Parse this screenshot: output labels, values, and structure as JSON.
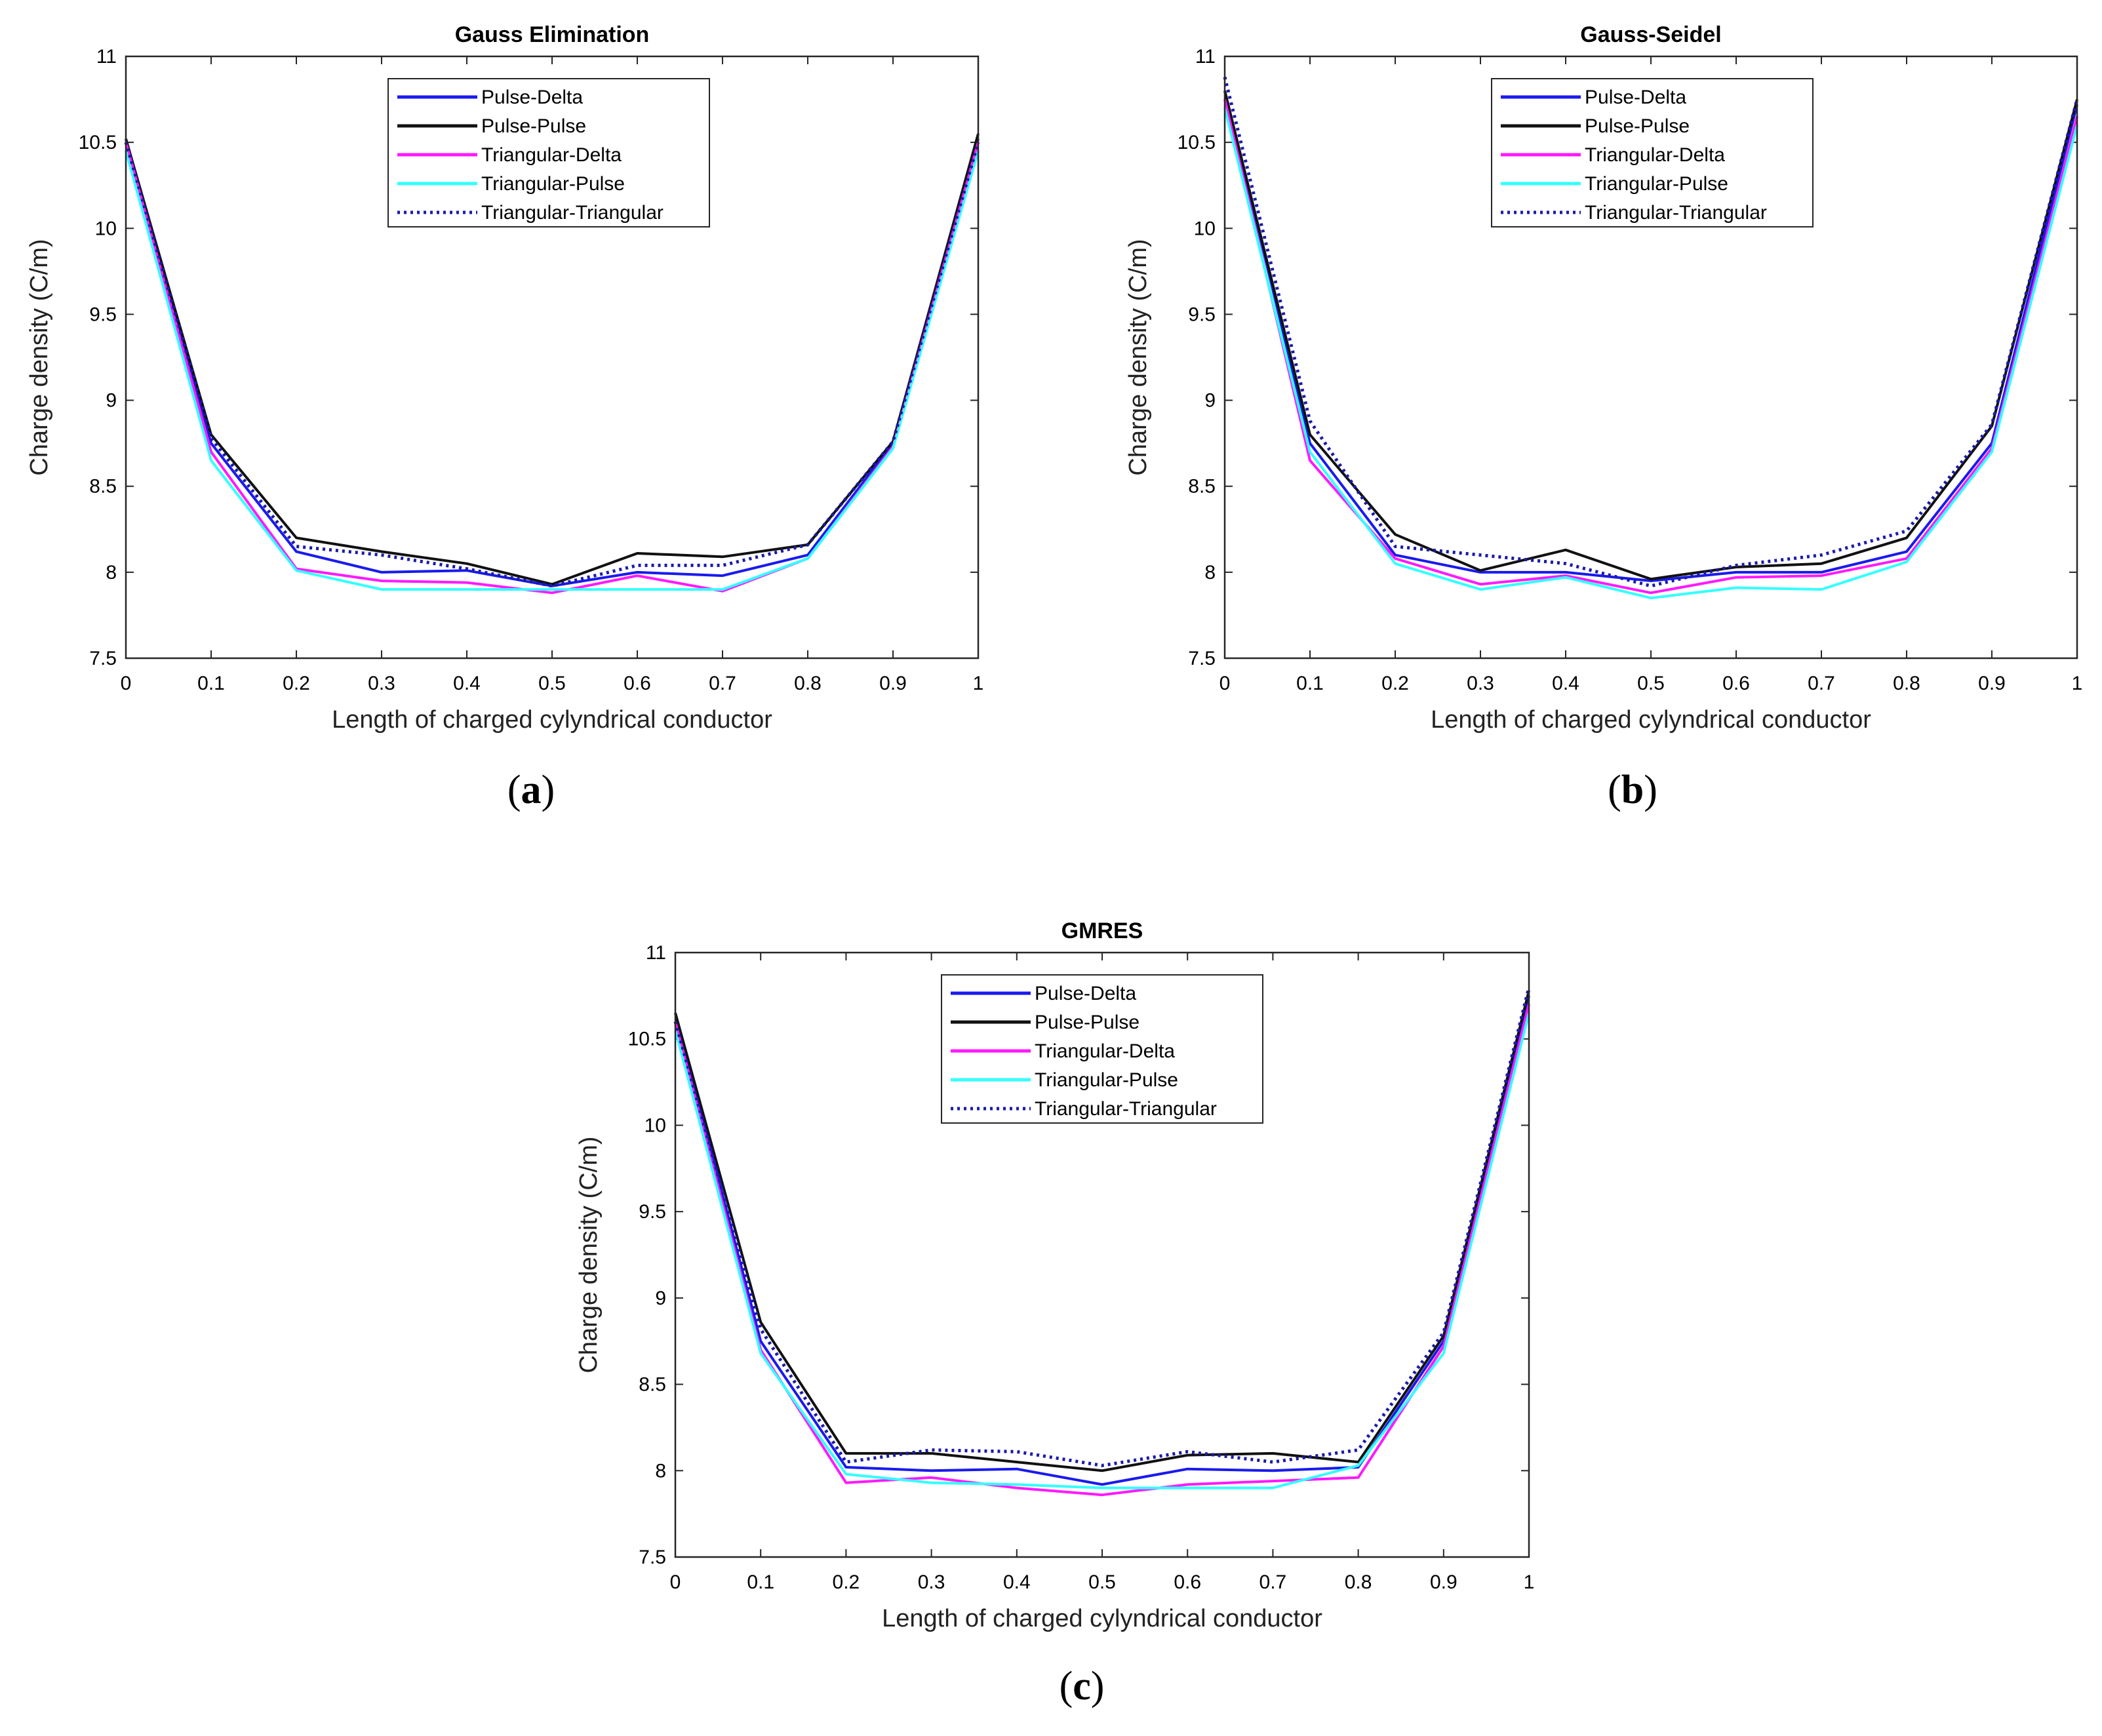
{
  "chart_data": [
    {
      "type": "line",
      "title": "Gauss Elimination",
      "caption_letter": "a",
      "xlabel": "Length of charged cylyndrical conductor",
      "ylabel": "Charge density (C/m)",
      "xlim": [
        0,
        1
      ],
      "ylim": [
        7.5,
        11
      ],
      "xticks": [
        "0",
        "0.1",
        "0.2",
        "0.3",
        "0.4",
        "0.5",
        "0.6",
        "0.7",
        "0.8",
        "0.9",
        "1"
      ],
      "yticks": [
        "7.5",
        "8",
        "8.5",
        "9",
        "9.5",
        "10",
        "10.5",
        "11"
      ],
      "legend_position": "top-center",
      "x": [
        0,
        0.1,
        0.2,
        0.3,
        0.4,
        0.5,
        0.6,
        0.7,
        0.8,
        0.9,
        1
      ],
      "series": [
        {
          "name": "Pulse-Delta",
          "color": "#1a1aee",
          "style": "solid",
          "values": [
            10.52,
            8.75,
            8.12,
            8.0,
            8.01,
            7.92,
            8.0,
            7.98,
            8.1,
            8.75,
            10.52
          ]
        },
        {
          "name": "Pulse-Pulse",
          "color": "#111111",
          "style": "solid",
          "values": [
            10.52,
            8.8,
            8.2,
            8.12,
            8.05,
            7.93,
            8.11,
            8.09,
            8.16,
            8.76,
            10.55
          ]
        },
        {
          "name": "Triangular-Delta",
          "color": "#ff19ff",
          "style": "solid",
          "values": [
            10.5,
            8.7,
            8.02,
            7.95,
            7.94,
            7.88,
            7.98,
            7.89,
            8.08,
            8.73,
            10.5
          ]
        },
        {
          "name": "Triangular-Pulse",
          "color": "#33ffff",
          "style": "solid",
          "values": [
            10.45,
            8.65,
            8.01,
            7.9,
            7.9,
            7.9,
            7.9,
            7.9,
            8.08,
            8.72,
            10.45
          ]
        },
        {
          "name": "Triangular-Triangular",
          "color": "#1a1aaa",
          "style": "dotted",
          "values": [
            10.5,
            8.78,
            8.15,
            8.1,
            8.02,
            7.92,
            8.04,
            8.04,
            8.16,
            8.76,
            10.5
          ]
        }
      ]
    },
    {
      "type": "line",
      "title": "Gauss-Seidel",
      "caption_letter": "b",
      "xlabel": "Length of charged cylyndrical conductor",
      "ylabel": "Charge density (C/m)",
      "xlim": [
        0,
        1
      ],
      "ylim": [
        7.5,
        11
      ],
      "xticks": [
        "0",
        "0.1",
        "0.2",
        "0.3",
        "0.4",
        "0.5",
        "0.6",
        "0.7",
        "0.8",
        "0.9",
        "1"
      ],
      "yticks": [
        "7.5",
        "8",
        "8.5",
        "9",
        "9.5",
        "10",
        "10.5",
        "11"
      ],
      "legend_position": "top-center",
      "x": [
        0,
        0.1,
        0.2,
        0.3,
        0.4,
        0.5,
        0.6,
        0.7,
        0.8,
        0.9,
        1
      ],
      "series": [
        {
          "name": "Pulse-Delta",
          "color": "#1a1aee",
          "style": "solid",
          "values": [
            10.8,
            8.75,
            8.1,
            8.0,
            8.0,
            7.95,
            8.0,
            8.0,
            8.12,
            8.75,
            10.72
          ]
        },
        {
          "name": "Pulse-Pulse",
          "color": "#111111",
          "style": "solid",
          "values": [
            10.8,
            8.8,
            8.22,
            8.01,
            8.13,
            7.96,
            8.03,
            8.05,
            8.2,
            8.85,
            10.75
          ]
        },
        {
          "name": "Triangular-Delta",
          "color": "#ff19ff",
          "style": "solid",
          "values": [
            10.75,
            8.65,
            8.08,
            7.93,
            7.98,
            7.88,
            7.97,
            7.98,
            8.08,
            8.72,
            10.65
          ]
        },
        {
          "name": "Triangular-Pulse",
          "color": "#33ffff",
          "style": "solid",
          "values": [
            10.7,
            8.7,
            8.05,
            7.9,
            7.97,
            7.85,
            7.91,
            7.9,
            8.06,
            8.7,
            10.6
          ]
        },
        {
          "name": "Triangular-Triangular",
          "color": "#1a1aaa",
          "style": "dotted",
          "values": [
            10.88,
            8.88,
            8.15,
            8.1,
            8.05,
            7.92,
            8.04,
            8.1,
            8.24,
            8.86,
            10.75
          ]
        }
      ]
    },
    {
      "type": "line",
      "title": "GMRES",
      "caption_letter": "c",
      "xlabel": "Length of charged cylyndrical conductor",
      "ylabel": "Charge density (C/m)",
      "xlim": [
        0,
        1
      ],
      "ylim": [
        7.5,
        11
      ],
      "xticks": [
        "0",
        "0.1",
        "0.2",
        "0.3",
        "0.4",
        "0.5",
        "0.6",
        "0.7",
        "0.8",
        "0.9",
        "1"
      ],
      "yticks": [
        "7.5",
        "8",
        "8.5",
        "9",
        "9.5",
        "10",
        "10.5",
        "11"
      ],
      "legend_position": "top-center",
      "x": [
        0,
        0.1,
        0.2,
        0.3,
        0.4,
        0.5,
        0.6,
        0.7,
        0.8,
        0.9,
        1
      ],
      "series": [
        {
          "name": "Pulse-Delta",
          "color": "#1a1aee",
          "style": "solid",
          "values": [
            10.65,
            8.75,
            8.02,
            8.0,
            8.01,
            7.92,
            8.01,
            8.0,
            8.02,
            8.75,
            10.75
          ]
        },
        {
          "name": "Pulse-Pulse",
          "color": "#111111",
          "style": "solid",
          "values": [
            10.65,
            8.86,
            8.1,
            8.1,
            8.05,
            8.0,
            8.09,
            8.1,
            8.05,
            8.78,
            10.78
          ]
        },
        {
          "name": "Triangular-Delta",
          "color": "#ff19ff",
          "style": "solid",
          "values": [
            10.6,
            8.7,
            7.93,
            7.96,
            7.9,
            7.86,
            7.92,
            7.94,
            7.96,
            8.72,
            10.7
          ]
        },
        {
          "name": "Triangular-Pulse",
          "color": "#33ffff",
          "style": "solid",
          "values": [
            10.55,
            8.68,
            7.98,
            7.93,
            7.92,
            7.9,
            7.9,
            7.9,
            8.03,
            8.68,
            10.65
          ]
        },
        {
          "name": "Triangular-Triangular",
          "color": "#1a1aaa",
          "style": "dotted",
          "values": [
            10.6,
            8.82,
            8.05,
            8.12,
            8.11,
            8.03,
            8.11,
            8.05,
            8.12,
            8.8,
            10.8
          ]
        }
      ]
    }
  ]
}
